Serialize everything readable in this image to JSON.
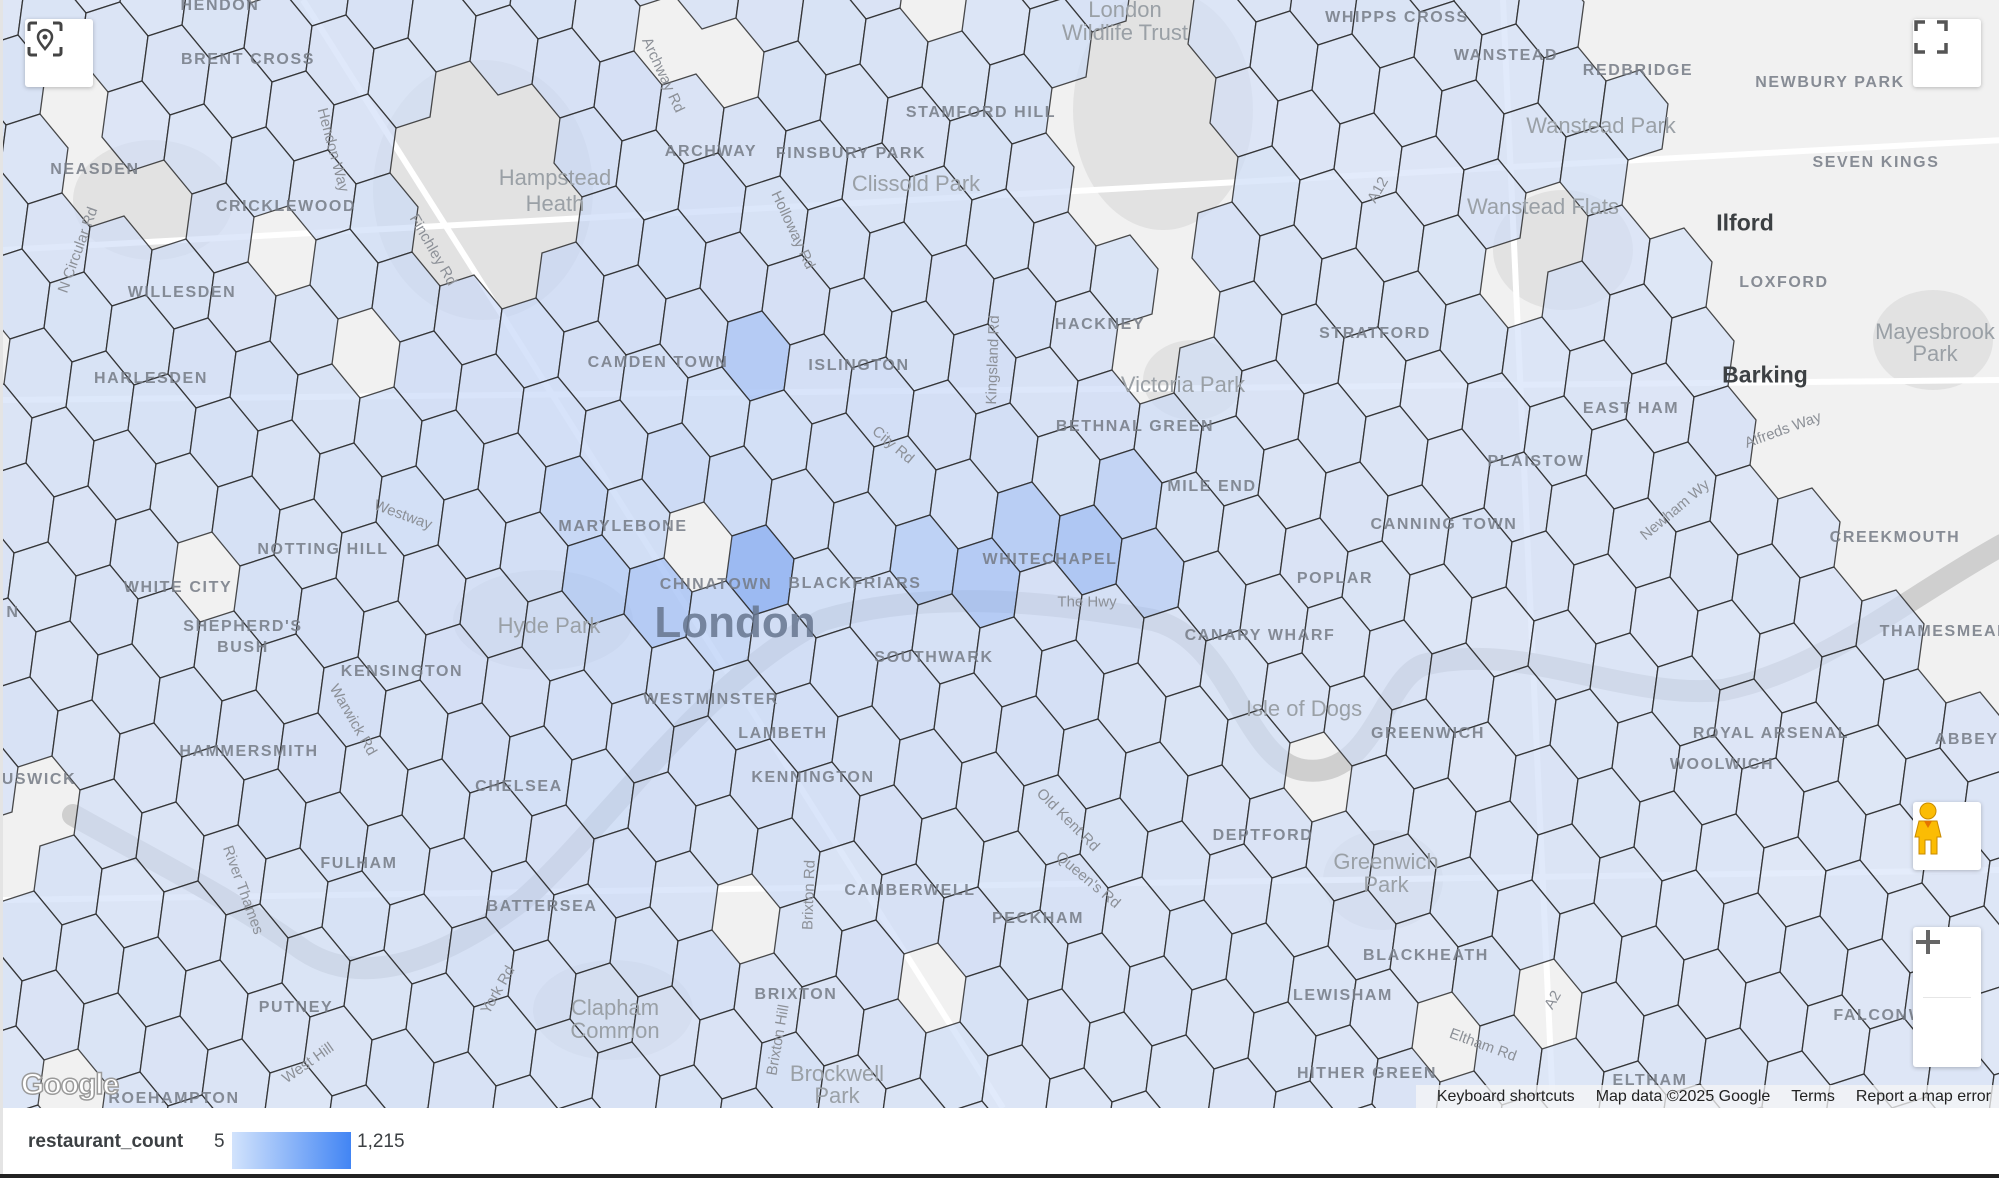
{
  "map": {
    "labels": [
      "HENDON",
      "BRENT CROSS",
      "NEASDEN",
      "CRICKLEWOOD",
      "WILLESDEN",
      "HARLESDEN",
      "Hampstead",
      "Heath",
      "ARCHWAY",
      "FINSBURY PARK",
      "STAMFORD HILL",
      "Clissold Park",
      "London",
      "Wildlife Trust",
      "WHIPPS CROSS",
      "WANSTEAD",
      "REDBRIDGE",
      "NEWBURY PARK",
      "Wanstead Park",
      "SEVEN KINGS",
      "Wanstead Flats",
      "Ilford",
      "LOXFORD",
      "Mayesbrook",
      "Park",
      "Barking",
      "EAST HAM",
      "PLAISTOW",
      "CREEKMOUTH",
      "THAMESMEAD",
      "ROYAL ARSENAL",
      "WOOLWICH",
      "ABBEY W",
      "CANNING TOWN",
      "HACKNEY",
      "STRATFORD",
      "Victoria Park",
      "BETHNAL GREEN",
      "MILE END",
      "POPLAR",
      "WHITECHAPEL",
      "The Hwy",
      "CANARY WHARF",
      "Isle of Dogs",
      "GREENWICH",
      "Greenwich",
      "Park",
      "DEPTFORD",
      "BLACKHEATH",
      "LEWISHAM",
      "HITHER GREEN",
      "ELTHAM",
      "FALCONWOOD",
      "W",
      "PECKHAM",
      "CAMBERWELL",
      "BRIXTON",
      "Clapham",
      "Common",
      "Brockwell",
      "Park",
      "KENNINGTON",
      "LAMBETH",
      "WESTMINSTER",
      "SOUTHWARK",
      "BLACKFRIARS",
      "CHINATOWN",
      "London",
      "Hyde Park",
      "MARYLEBONE",
      "CAMDEN TOWN",
      "ISLINGTON",
      "NOTTING HILL",
      "WHITE CITY",
      "SHEPHERD'S",
      "BUSH",
      "KENSINGTON",
      "HAMMERSMITH",
      "CHELSEA",
      "FULHAM",
      "BATTERSEA",
      "PUTNEY",
      "ROEHAMPTON",
      "USWICK",
      "N",
      "Westway",
      "Finchley Rd",
      "Hendon Way",
      "Holloway Rd",
      "Archway Rd",
      "City Rd",
      "Kingsland Rd",
      "A12",
      "Newham Wy",
      "Alfreds Way",
      "Warwick Rd",
      "West Hill",
      "York Rd",
      "River Thames",
      "Old Kent Rd",
      "Queen's Rd",
      "Brixton Rd",
      "Eltham Rd",
      "N Circular Rd",
      "A2",
      "Brixton Hill"
    ],
    "controls": {
      "locate_icon": "my-location-icon",
      "fullscreen_icon": "fullscreen-icon",
      "pegman_icon": "street-view-pegman-icon",
      "zoom_in": "+",
      "zoom_out": "−"
    },
    "logo": "Google",
    "attribution": {
      "keyboard_shortcuts": "Keyboard shortcuts",
      "map_data": "Map data ©2025 Google",
      "terms": "Terms",
      "report": "Report a map error"
    }
  },
  "legend": {
    "title": "restaurant_count",
    "min": "5",
    "max": "1,215",
    "min_color": "#d2e3fc",
    "max_color": "#4285f4"
  }
}
